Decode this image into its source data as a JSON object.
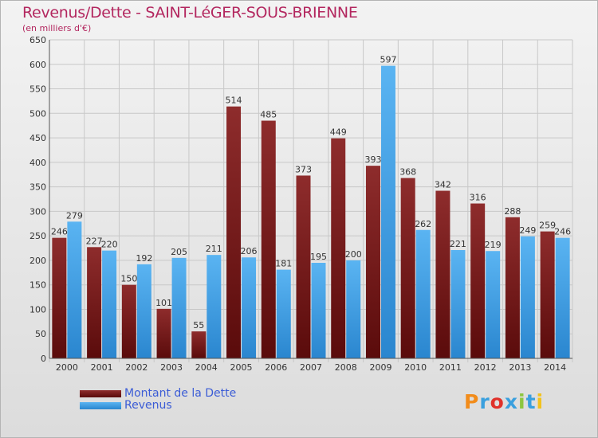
{
  "header": {
    "title": "Revenus/Dette - SAINT-LéGER-SOUS-BRIENNE",
    "subtitle": "(en milliers d'€)"
  },
  "colors": {
    "title": "#b3275f",
    "series_dette": "#7b1e1e",
    "series_revenus": "#3d9ee6",
    "legend_text": "#3b5cd6"
  },
  "legend": [
    {
      "label": "Montant de la Dette"
    },
    {
      "label": "Revenus"
    }
  ],
  "logo": {
    "text": "Proxiti"
  },
  "chart_data": {
    "type": "bar",
    "categories": [
      "2000",
      "2001",
      "2002",
      "2003",
      "2004",
      "2005",
      "2006",
      "2007",
      "2008",
      "2009",
      "2010",
      "2011",
      "2012",
      "2013",
      "2014"
    ],
    "series": [
      {
        "name": "Montant de la Dette",
        "values": [
          246,
          227,
          150,
          101,
          55,
          514,
          485,
          373,
          449,
          393,
          368,
          342,
          316,
          288,
          259
        ]
      },
      {
        "name": "Revenus",
        "values": [
          279,
          220,
          192,
          205,
          211,
          206,
          181,
          195,
          200,
          597,
          262,
          221,
          219,
          249,
          246
        ]
      }
    ],
    "ylim": [
      0,
      650
    ],
    "yticks": [
      0,
      50,
      100,
      150,
      200,
      250,
      300,
      350,
      400,
      450,
      500,
      550,
      600,
      650
    ],
    "grid": true,
    "legend_position": "bottom-left"
  }
}
